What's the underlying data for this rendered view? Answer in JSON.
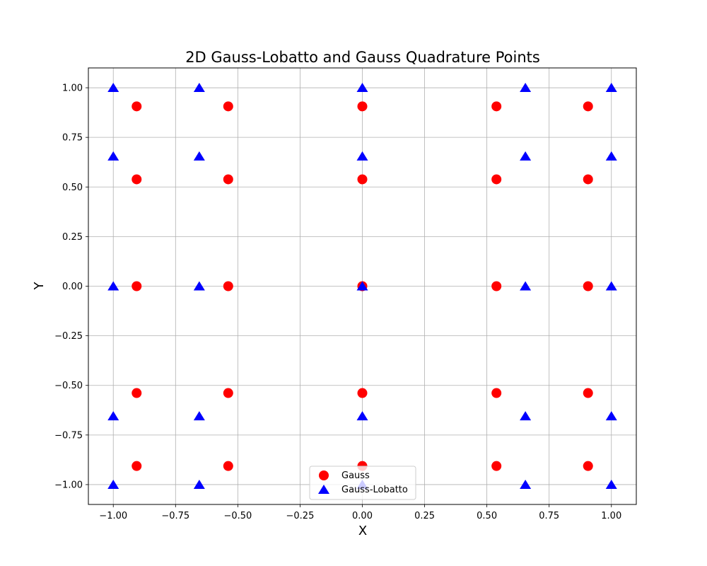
{
  "chart_data": {
    "type": "scatter",
    "title": "2D Gauss-Lobatto and Gauss Quadrature Points",
    "xlabel": "X",
    "ylabel": "Y",
    "xlim": [
      -1.1,
      1.1
    ],
    "ylim": [
      -1.1,
      1.1
    ],
    "xticks": [
      -1.0,
      -0.75,
      -0.5,
      -0.25,
      0.0,
      0.25,
      0.5,
      0.75,
      1.0
    ],
    "xtick_labels": [
      "−1.00",
      "−0.75",
      "−0.50",
      "−0.25",
      "0.00",
      "0.25",
      "0.50",
      "0.75",
      "1.00"
    ],
    "yticks": [
      -1.0,
      -0.75,
      -0.5,
      -0.25,
      0.0,
      0.25,
      0.5,
      0.75,
      1.0
    ],
    "ytick_labels": [
      "−1.00",
      "−0.75",
      "−0.50",
      "−0.25",
      "0.00",
      "0.25",
      "0.50",
      "0.75",
      "1.00"
    ],
    "grid": true,
    "legend_position": "lower center",
    "series": [
      {
        "name": "Gauss",
        "marker": "circle",
        "color": "#ff0000",
        "nodes": [
          -0.9062,
          -0.5385,
          0.0,
          0.5385,
          0.9062
        ]
      },
      {
        "name": "Gauss-Lobatto",
        "marker": "triangle",
        "color": "#0000ff",
        "nodes": [
          -1.0,
          -0.6547,
          0.0,
          0.6547,
          1.0
        ]
      }
    ]
  }
}
